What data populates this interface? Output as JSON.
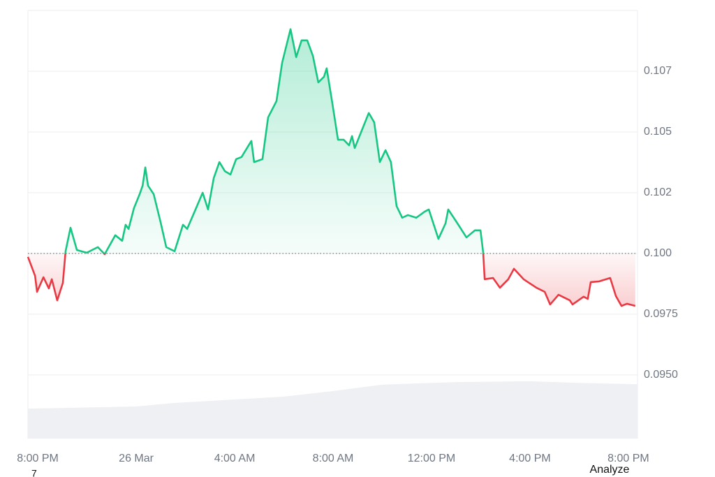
{
  "chart_data": {
    "type": "line",
    "baseline": 0.1,
    "up_color": "#16c784",
    "down_color": "#ea3943",
    "grid": true,
    "xlim": [
      -0.4,
      24.37
    ],
    "xticks": [
      {
        "value": 0,
        "label": "8:00 PM"
      },
      {
        "value": 4,
        "label": "26 Mar"
      },
      {
        "value": 8,
        "label": "4:00 AM"
      },
      {
        "value": 12,
        "label": "8:00 AM"
      },
      {
        "value": 16,
        "label": "12:00 PM"
      },
      {
        "value": 20,
        "label": "4:00 PM"
      },
      {
        "value": 24,
        "label": "8:00 PM"
      }
    ],
    "ylim": [
      0.09238,
      0.11
    ],
    "yticks": [
      {
        "value": 0.095,
        "label": "0.0950"
      },
      0.0975,
      {
        "value": 0.1,
        "label": "0.100"
      },
      {
        "value": 0.1025,
        "label": "0.102"
      },
      0.105,
      {
        "value": 0.1075,
        "label": "0.107"
      }
    ],
    "x": [
      -0.4,
      -0.11,
      -0.03,
      0.23,
      0.45,
      0.57,
      0.79,
      1.02,
      1.13,
      1.33,
      1.59,
      1.99,
      2.44,
      2.72,
      3.15,
      3.43,
      3.57,
      3.69,
      3.91,
      4.14,
      4.26,
      4.37,
      4.48,
      4.71,
      4.99,
      5.22,
      5.56,
      5.9,
      6.07,
      6.41,
      6.7,
      6.92,
      7.15,
      7.38,
      7.6,
      7.83,
      8.06,
      8.28,
      8.57,
      8.68,
      8.79,
      9.13,
      9.36,
      9.7,
      9.93,
      10.27,
      10.5,
      10.72,
      10.95,
      11.18,
      11.4,
      11.63,
      11.74,
      11.97,
      12.2,
      12.43,
      12.65,
      12.77,
      12.88,
      13.22,
      13.45,
      13.67,
      13.9,
      14.13,
      14.35,
      14.58,
      14.81,
      15.04,
      15.38,
      15.72,
      15.89,
      16.28,
      16.57,
      16.68,
      17.02,
      17.42,
      17.76,
      17.99,
      18.1,
      18.16,
      18.5,
      18.78,
      19.12,
      19.35,
      19.74,
      20.26,
      20.6,
      20.82,
      21.16,
      21.62,
      21.73,
      22.18,
      22.35,
      22.47,
      22.81,
      23.26,
      23.49,
      23.72,
      23.94,
      24.28
    ],
    "values": [
      0.09986,
      0.09908,
      0.09842,
      0.09902,
      0.09856,
      0.09894,
      0.09807,
      0.09879,
      0.10009,
      0.10106,
      0.10014,
      0.10003,
      0.10026,
      0.09997,
      0.10075,
      0.10052,
      0.10118,
      0.10101,
      0.10187,
      0.10244,
      0.10279,
      0.10354,
      0.10279,
      0.10244,
      0.10129,
      0.10026,
      0.10009,
      0.10118,
      0.10101,
      0.10181,
      0.1025,
      0.10181,
      0.1031,
      0.10376,
      0.10339,
      0.10325,
      0.10388,
      0.10397,
      0.10445,
      0.10463,
      0.10376,
      0.10388,
      0.1056,
      0.10627,
      0.10785,
      0.10923,
      0.10808,
      0.10877,
      0.10877,
      0.10813,
      0.10704,
      0.10727,
      0.10762,
      0.10618,
      0.10468,
      0.10468,
      0.10445,
      0.10483,
      0.10434,
      0.1052,
      0.10578,
      0.1054,
      0.10376,
      0.10425,
      0.10376,
      0.10195,
      0.10147,
      0.10158,
      0.10147,
      0.10172,
      0.10181,
      0.1006,
      0.10124,
      0.10181,
      0.10129,
      0.10066,
      0.10095,
      0.10095,
      0.10003,
      0.09894,
      0.09899,
      0.09859,
      0.09894,
      0.09937,
      0.09894,
      0.09859,
      0.09842,
      0.0979,
      0.0983,
      0.09807,
      0.0979,
      0.09822,
      0.09813,
      0.09882,
      0.09885,
      0.09899,
      0.09825,
      0.09784,
      0.09793,
      0.09784
    ],
    "volume": {
      "axis": "y2",
      "color": "#eef0f3",
      "x": [
        -0.4,
        4,
        5.5,
        10,
        12,
        14,
        17,
        20,
        22,
        24.37
      ],
      "values": [
        7.0,
        7.5,
        8.3,
        9.8,
        11.1,
        12.6,
        13.2,
        13.4,
        13.0,
        12.7
      ]
    },
    "y2lim": [
      0,
      100
    ],
    "annotations": [
      "7",
      "Analyze"
    ]
  }
}
